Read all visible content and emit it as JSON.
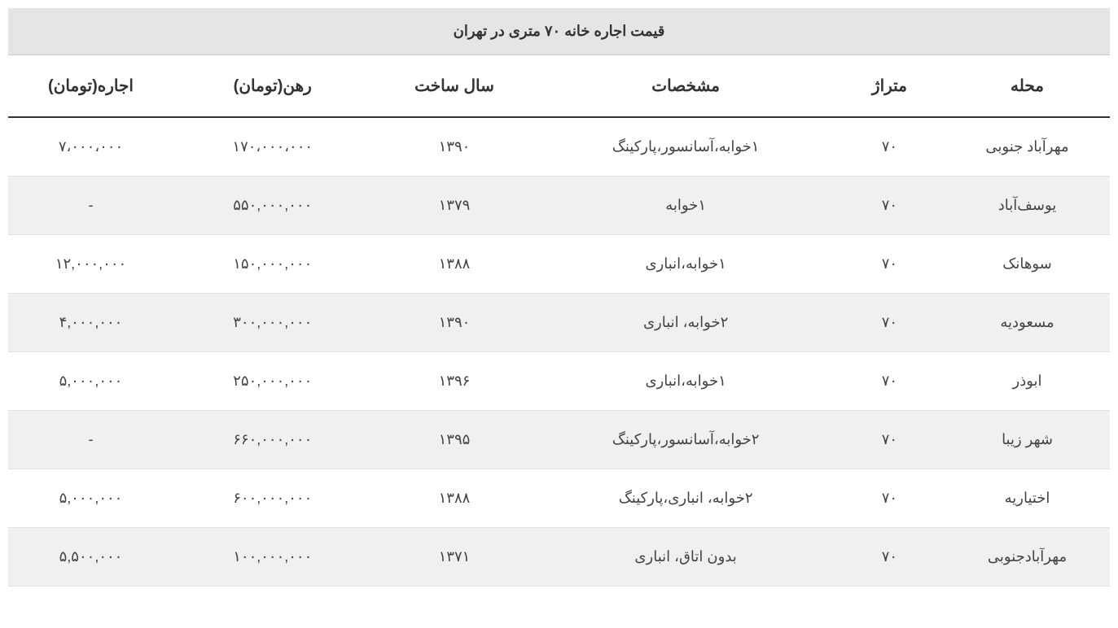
{
  "table": {
    "title": "قیمت اجاره خانه ۷۰ متری در تهران",
    "columns": {
      "neighborhood": "محله",
      "area": "متراژ",
      "specs": "مشخصات",
      "year": "سال ساخت",
      "deposit": "رهن(تومان)",
      "rent": "اجاره(تومان)"
    },
    "rows": [
      {
        "neighborhood": "مهرآباد جنوبی",
        "area": "۷۰",
        "specs": "۱خوابه،آسانسور،پارکینگ",
        "year": "۱۳۹۰",
        "deposit": "۱۷۰،۰۰۰،۰۰۰",
        "rent": "۷،۰۰۰،۰۰۰"
      },
      {
        "neighborhood": "یوسف‌آباد",
        "area": "۷۰",
        "specs": "۱خوابه",
        "year": "۱۳۷۹",
        "deposit": "۵۵۰,۰۰۰,۰۰۰",
        "rent": "-"
      },
      {
        "neighborhood": "سوهانک",
        "area": "۷۰",
        "specs": "۱خوابه،انباری",
        "year": "۱۳۸۸",
        "deposit": "۱۵۰,۰۰۰,۰۰۰",
        "rent": "۱۲,۰۰۰,۰۰۰"
      },
      {
        "neighborhood": "مسعودیه",
        "area": "۷۰",
        "specs": "۲خوابه، انباری",
        "year": "۱۳۹۰",
        "deposit": "۳۰۰,۰۰۰,۰۰۰",
        "rent": "۴,۰۰۰,۰۰۰"
      },
      {
        "neighborhood": "ابوذر",
        "area": "۷۰",
        "specs": "۱خوابه،انباری",
        "year": "۱۳۹۶",
        "deposit": "۲۵۰,۰۰۰,۰۰۰",
        "rent": "۵,۰۰۰,۰۰۰"
      },
      {
        "neighborhood": "شهر زیبا",
        "area": "۷۰",
        "specs": "۲خوابه،آسانسور،پارکینگ",
        "year": "۱۳۹۵",
        "deposit": "۶۶۰,۰۰۰,۰۰۰",
        "rent": "-"
      },
      {
        "neighborhood": "اختیاریه",
        "area": "۷۰",
        "specs": "۲خوابه، انباری،پارکینگ",
        "year": "۱۳۸۸",
        "deposit": "۶۰۰,۰۰۰,۰۰۰",
        "rent": "۵,۰۰۰,۰۰۰"
      },
      {
        "neighborhood": "مهرآبادجنوبی",
        "area": "۷۰",
        "specs": "بدون اتاق، انباری",
        "year": "۱۳۷۱",
        "deposit": "۱۰۰,۰۰۰,۰۰۰",
        "rent": "۵,۵۰۰,۰۰۰"
      }
    ],
    "styling": {
      "header_bg": "#e5e5e5",
      "stripe_bg": "#f0f0f0",
      "row_bg": "#ffffff",
      "border_color": "#cccccc",
      "header_border_bottom": "#333333",
      "text_color": "#333333",
      "title_fontsize": 18,
      "header_fontsize": 20,
      "cell_fontsize": 18
    }
  }
}
